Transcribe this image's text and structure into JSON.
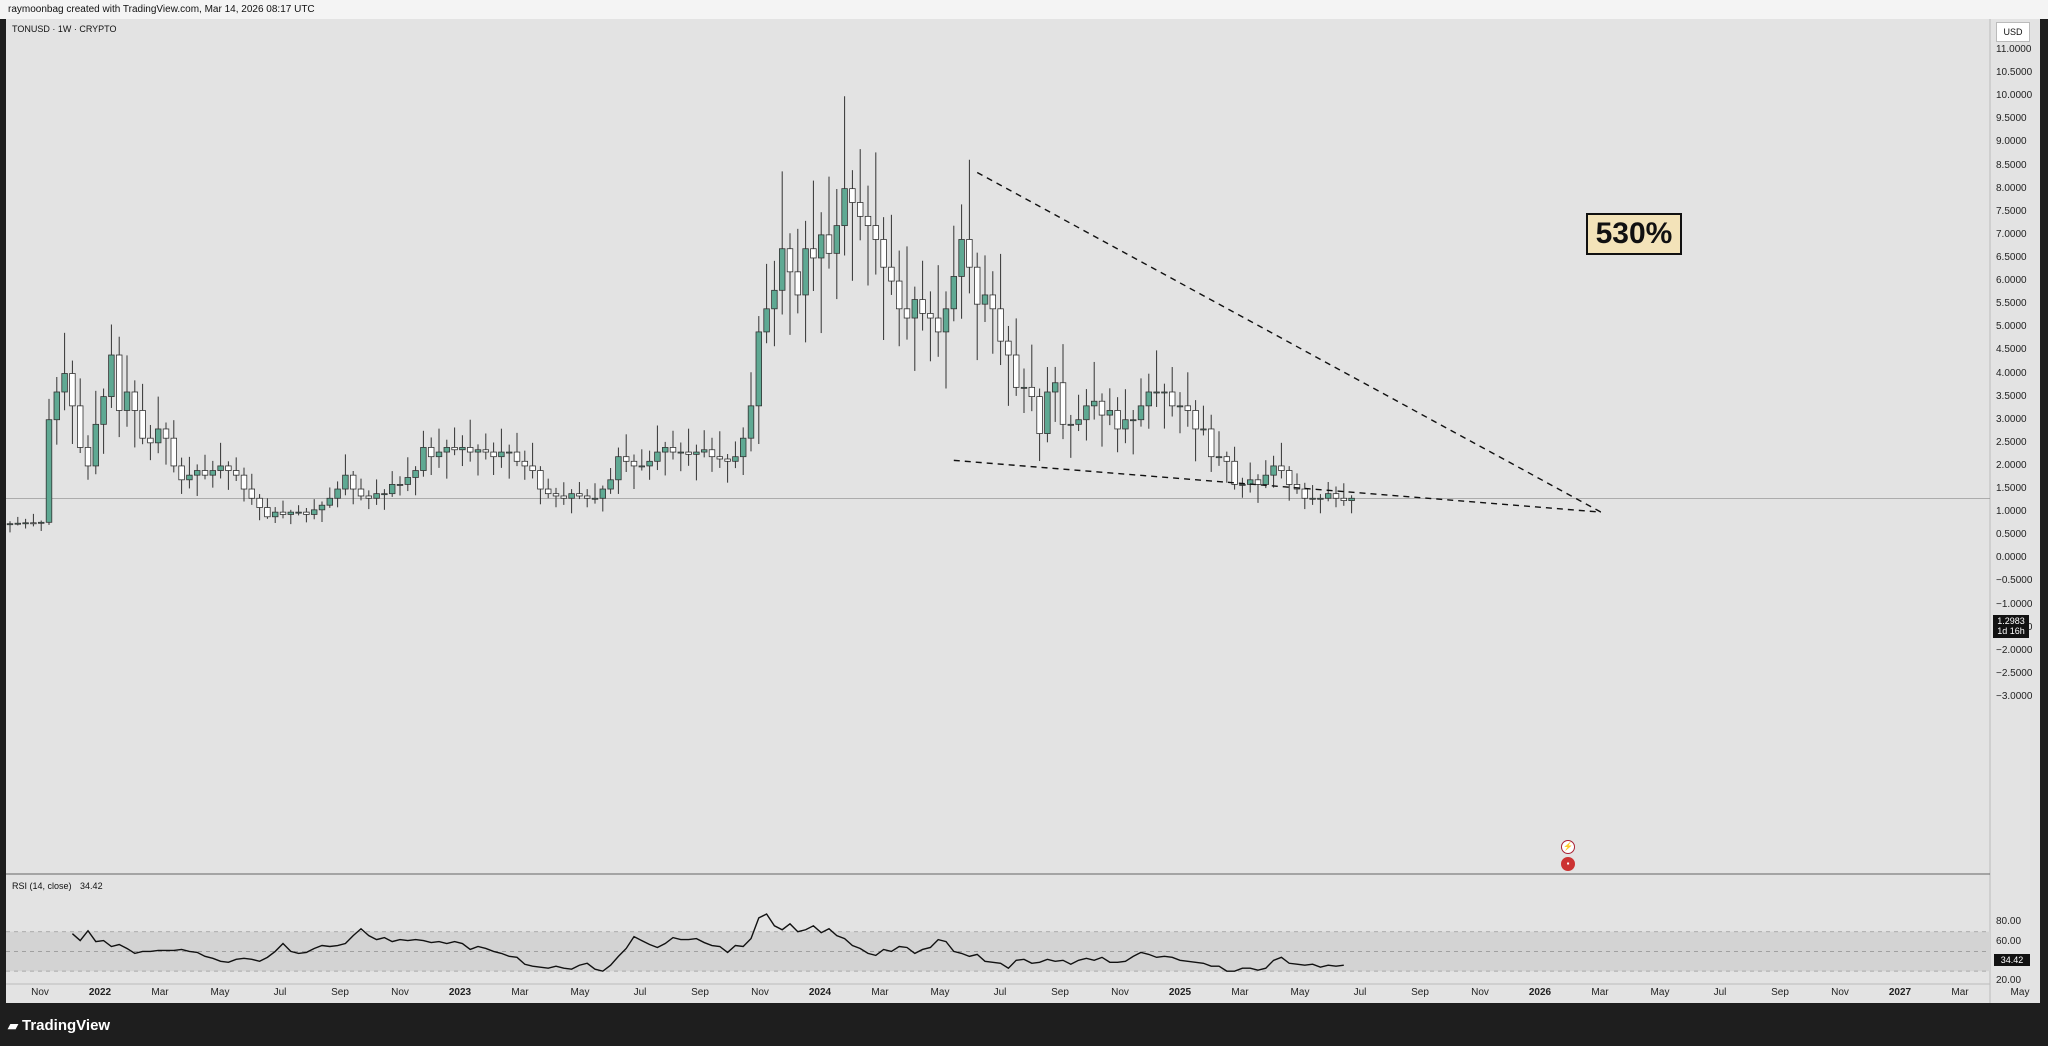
{
  "header": {
    "credit": "raymoonbag created with TradingView.com, Mar 14, 2026 08:17 UTC",
    "symbol": "TONUSD · 1W · CRYPTO",
    "currency": "USD"
  },
  "chart_data": {
    "type": "candlestick",
    "symbol": "TONUSD",
    "interval": "1W",
    "ylim": [
      -3.0,
      11.0
    ],
    "y_ticks": [
      "11.0000",
      "10.5000",
      "10.0000",
      "9.5000",
      "9.0000",
      "8.5000",
      "8.0000",
      "7.5000",
      "7.0000",
      "6.5000",
      "6.0000",
      "5.5000",
      "5.0000",
      "4.5000",
      "4.0000",
      "3.5000",
      "3.0000",
      "2.5000",
      "2.0000",
      "1.5000",
      "1.0000",
      "0.5000",
      "0.0000",
      "−0.5000",
      "−1.0000",
      "−1.5000",
      "−2.0000",
      "−2.5000",
      "−3.0000"
    ],
    "last_price": "1.2983",
    "countdown": "1d 16h",
    "annotation": "530%",
    "x_ticks": [
      {
        "label": "Nov",
        "bold": false
      },
      {
        "label": "2022",
        "bold": true
      },
      {
        "label": "Mar",
        "bold": false
      },
      {
        "label": "May",
        "bold": false
      },
      {
        "label": "Jul",
        "bold": false
      },
      {
        "label": "Sep",
        "bold": false
      },
      {
        "label": "Nov",
        "bold": false
      },
      {
        "label": "2023",
        "bold": true
      },
      {
        "label": "Mar",
        "bold": false
      },
      {
        "label": "May",
        "bold": false
      },
      {
        "label": "Jul",
        "bold": false
      },
      {
        "label": "Sep",
        "bold": false
      },
      {
        "label": "Nov",
        "bold": false
      },
      {
        "label": "2024",
        "bold": true
      },
      {
        "label": "Mar",
        "bold": false
      },
      {
        "label": "May",
        "bold": false
      },
      {
        "label": "Jul",
        "bold": false
      },
      {
        "label": "Sep",
        "bold": false
      },
      {
        "label": "Nov",
        "bold": false
      },
      {
        "label": "2025",
        "bold": true
      },
      {
        "label": "Mar",
        "bold": false
      },
      {
        "label": "May",
        "bold": false
      },
      {
        "label": "Jul",
        "bold": false
      },
      {
        "label": "Sep",
        "bold": false
      },
      {
        "label": "Nov",
        "bold": false
      },
      {
        "label": "2026",
        "bold": true
      },
      {
        "label": "Mar",
        "bold": false
      },
      {
        "label": "May",
        "bold": false
      },
      {
        "label": "Jul",
        "bold": false
      },
      {
        "label": "Sep",
        "bold": false
      },
      {
        "label": "Nov",
        "bold": false
      },
      {
        "label": "2027",
        "bold": true
      },
      {
        "label": "Mar",
        "bold": false
      },
      {
        "label": "May",
        "bold": false
      }
    ],
    "close_series": [
      0.75,
      0.76,
      0.77,
      0.76,
      0.78,
      3.0,
      3.6,
      4.0,
      3.3,
      2.4,
      2.0,
      2.9,
      3.5,
      4.4,
      3.2,
      3.6,
      3.2,
      2.6,
      2.5,
      2.8,
      2.6,
      2.0,
      1.7,
      1.8,
      1.9,
      1.8,
      1.9,
      2.0,
      1.9,
      1.8,
      1.5,
      1.3,
      1.1,
      0.9,
      1.0,
      0.95,
      1.0,
      1.0,
      0.95,
      1.05,
      1.15,
      1.3,
      1.5,
      1.8,
      1.5,
      1.35,
      1.3,
      1.4,
      1.4,
      1.6,
      1.6,
      1.75,
      1.9,
      2.4,
      2.2,
      2.3,
      2.4,
      2.35,
      2.4,
      2.3,
      2.35,
      2.3,
      2.2,
      2.3,
      2.3,
      2.1,
      2.0,
      1.9,
      1.5,
      1.4,
      1.35,
      1.3,
      1.4,
      1.35,
      1.3,
      1.3,
      1.5,
      1.7,
      2.2,
      2.1,
      2.0,
      2.0,
      2.1,
      2.3,
      2.4,
      2.3,
      2.3,
      2.25,
      2.3,
      2.35,
      2.2,
      2.15,
      2.1,
      2.2,
      2.6,
      3.3,
      4.9,
      5.4,
      5.8,
      6.7,
      6.2,
      5.7,
      6.7,
      6.5,
      7.0,
      6.6,
      7.2,
      8.0,
      7.7,
      7.4,
      7.2,
      6.9,
      6.3,
      6.0,
      5.4,
      5.2,
      5.6,
      5.3,
      5.2,
      4.9,
      5.4,
      6.1,
      6.9,
      6.3,
      5.5,
      5.7,
      5.4,
      4.7,
      4.4,
      3.7,
      3.7,
      3.5,
      2.7,
      3.6,
      3.8,
      2.9,
      2.9,
      3.0,
      3.3,
      3.4,
      3.1,
      3.2,
      2.8,
      3.0,
      3.0,
      3.3,
      3.6,
      3.6,
      3.6,
      3.3,
      3.3,
      3.2,
      2.8,
      2.8,
      2.2,
      2.2,
      2.1,
      1.6,
      1.6,
      1.7,
      1.6,
      1.8,
      2.0,
      1.9,
      1.6,
      1.5,
      1.3,
      1.3,
      1.3,
      1.4,
      1.3,
      1.25,
      1.3
    ],
    "rsi": {
      "label": "RSI (14, close)",
      "value": "34.42",
      "ylim": [
        20,
        90
      ],
      "y_ticks": [
        "80.00",
        "60.00",
        "40.00",
        "20.00"
      ],
      "bands": [
        70,
        50,
        30
      ],
      "series": [
        68,
        61,
        71,
        60,
        61,
        55,
        57,
        53,
        48,
        50,
        50,
        51,
        51,
        51,
        52,
        50,
        49,
        45,
        43,
        40,
        39,
        42,
        43,
        42,
        40,
        44,
        50,
        58,
        50,
        48,
        49,
        53,
        56,
        55,
        56,
        58,
        66,
        73,
        66,
        62,
        64,
        60,
        62,
        61,
        62,
        61,
        59,
        60,
        58,
        60,
        58,
        52,
        55,
        53,
        50,
        48,
        45,
        44,
        37,
        35,
        34,
        33,
        35,
        33,
        32,
        36,
        38,
        32,
        30,
        36,
        45,
        53,
        65,
        61,
        57,
        54,
        58,
        64,
        62,
        62,
        63,
        59,
        56,
        55,
        49,
        56,
        55,
        63,
        84,
        88,
        76,
        72,
        78,
        70,
        72,
        76,
        69,
        73,
        66,
        63,
        56,
        53,
        48,
        46,
        52,
        50,
        55,
        54,
        48,
        52,
        54,
        62,
        60,
        50,
        48,
        45,
        47,
        40,
        39,
        38,
        33,
        41,
        42,
        38,
        39,
        42,
        40,
        41,
        37,
        41,
        43,
        41,
        44,
        39,
        39,
        40,
        45,
        49,
        47,
        44,
        45,
        44,
        41,
        40,
        39,
        38,
        35,
        35,
        30,
        30,
        33,
        33,
        31,
        33,
        41,
        44,
        38,
        37,
        36,
        37,
        34,
        36,
        35,
        36
      ]
    },
    "trendlines": [
      {
        "name": "upper",
        "from": {
          "week": "2024-05",
          "price": 8.35
        },
        "to": {
          "week": "2026-04",
          "price": 1.0
        }
      },
      {
        "name": "lower",
        "from": {
          "week": "2024-02",
          "price": 2.12
        },
        "to": {
          "week": "2026-04",
          "price": 1.0
        }
      }
    ]
  },
  "footer": {
    "brand": "TradingView"
  }
}
